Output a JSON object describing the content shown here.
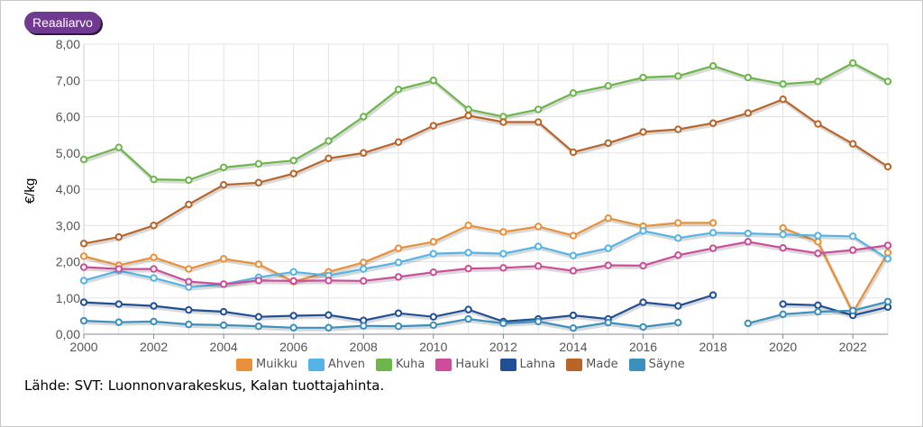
{
  "mode_button": {
    "label": "Reaaliarvo"
  },
  "source_text": "Lähde: SVT: Luonnonvarakeskus, Kalan tuottajahinta.",
  "chart_data": {
    "type": "line",
    "ylabel": "€/kg",
    "xlabel": "",
    "xlim": [
      2000,
      2023
    ],
    "ylim": [
      0,
      8
    ],
    "grid": true,
    "legend_position": "bottom",
    "x_ticks": [
      "2000",
      "2002",
      "2004",
      "2006",
      "2008",
      "2010",
      "2012",
      "2014",
      "2016",
      "2018",
      "2020",
      "2022"
    ],
    "y_ticks": [
      "0,00",
      "1,00",
      "2,00",
      "3,00",
      "4,00",
      "5,00",
      "6,00",
      "7,00",
      "8,00"
    ],
    "x": [
      2000,
      2001,
      2002,
      2003,
      2004,
      2005,
      2006,
      2007,
      2008,
      2009,
      2010,
      2011,
      2012,
      2013,
      2014,
      2015,
      2016,
      2017,
      2018,
      2019,
      2020,
      2021,
      2022,
      2023
    ],
    "series": [
      {
        "name": "Muikku",
        "color": "#e8913a",
        "values": [
          2.15,
          1.9,
          2.12,
          1.8,
          2.08,
          1.93,
          1.45,
          1.72,
          1.98,
          2.37,
          2.55,
          3.0,
          2.82,
          2.97,
          2.72,
          3.2,
          2.98,
          3.07,
          3.07,
          null,
          2.93,
          2.55,
          0.6,
          2.25
        ]
      },
      {
        "name": "Ahven",
        "color": "#55b4e6",
        "values": [
          1.48,
          1.75,
          1.55,
          1.3,
          1.38,
          1.57,
          1.72,
          1.62,
          1.8,
          1.98,
          2.22,
          2.25,
          2.22,
          2.42,
          2.17,
          2.37,
          2.85,
          2.65,
          2.8,
          2.78,
          2.75,
          2.72,
          2.7,
          2.08
        ]
      },
      {
        "name": "Kuha",
        "color": "#6cb64b",
        "values": [
          4.82,
          5.15,
          4.27,
          4.25,
          4.6,
          4.7,
          4.79,
          5.33,
          6.0,
          6.75,
          7.0,
          6.2,
          6.0,
          6.2,
          6.65,
          6.85,
          7.08,
          7.12,
          7.4,
          7.08,
          6.9,
          6.97,
          7.48,
          6.97
        ]
      },
      {
        "name": "Hauki",
        "color": "#cc4d9a",
        "values": [
          1.85,
          1.8,
          1.8,
          1.45,
          1.38,
          1.48,
          1.47,
          1.48,
          1.47,
          1.58,
          1.71,
          1.81,
          1.83,
          1.88,
          1.75,
          1.9,
          1.89,
          2.18,
          2.37,
          2.55,
          2.38,
          2.23,
          2.32,
          2.45
        ]
      },
      {
        "name": "Lahna",
        "color": "#214f96",
        "values": [
          0.88,
          0.83,
          0.78,
          0.67,
          0.62,
          0.48,
          0.51,
          0.53,
          0.38,
          0.58,
          0.48,
          0.68,
          0.35,
          0.42,
          0.52,
          0.42,
          0.88,
          0.78,
          1.08,
          null,
          0.83,
          0.8,
          0.52,
          0.75
        ]
      },
      {
        "name": "Made",
        "color": "#b8652a",
        "values": [
          2.5,
          2.68,
          3.0,
          3.58,
          4.12,
          4.18,
          4.43,
          4.85,
          5.0,
          5.3,
          5.75,
          6.03,
          5.85,
          5.85,
          5.02,
          5.27,
          5.58,
          5.65,
          5.82,
          6.1,
          6.48,
          5.8,
          5.25,
          4.62
        ]
      },
      {
        "name": "Säyne",
        "color": "#3b90bd",
        "values": [
          0.37,
          0.33,
          0.35,
          0.27,
          0.25,
          0.22,
          0.18,
          0.18,
          0.23,
          0.22,
          0.25,
          0.42,
          0.3,
          0.35,
          0.17,
          0.32,
          0.2,
          0.32,
          null,
          0.3,
          0.55,
          0.62,
          0.65,
          0.9
        ]
      }
    ]
  }
}
